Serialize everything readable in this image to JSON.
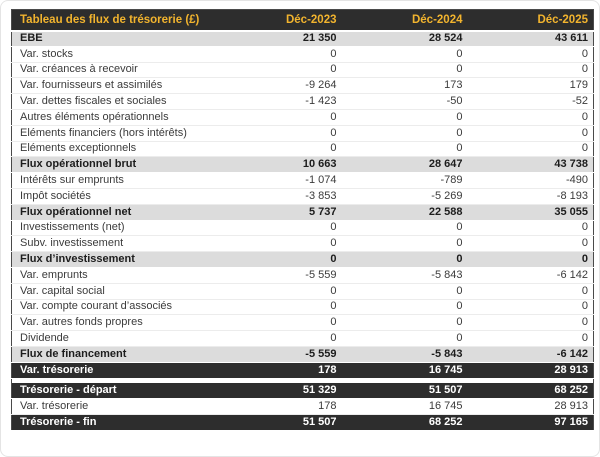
{
  "table": {
    "title": "Tableau des flux de trésorerie (£)",
    "columns": [
      "Déc-2023",
      "Déc-2024",
      "Déc-2025"
    ],
    "rows": [
      {
        "label": "EBE",
        "values": [
          "21 350",
          "28 524",
          "43 611"
        ],
        "style": "subtotal"
      },
      {
        "label": "Var. stocks",
        "values": [
          "0",
          "0",
          "0"
        ],
        "style": "normal"
      },
      {
        "label": "Var. créances à recevoir",
        "values": [
          "0",
          "0",
          "0"
        ],
        "style": "normal"
      },
      {
        "label": "Var. fournisseurs et assimilés",
        "values": [
          "-9 264",
          "173",
          "179"
        ],
        "style": "normal"
      },
      {
        "label": "Var. dettes fiscales et sociales",
        "values": [
          "-1 423",
          "-50",
          "-52"
        ],
        "style": "normal"
      },
      {
        "label": "Autres éléments opérationnels",
        "values": [
          "0",
          "0",
          "0"
        ],
        "style": "normal"
      },
      {
        "label": "Eléments financiers (hors intérêts)",
        "values": [
          "0",
          "0",
          "0"
        ],
        "style": "normal"
      },
      {
        "label": "Eléments exceptionnels",
        "values": [
          "0",
          "0",
          "0"
        ],
        "style": "normal"
      },
      {
        "label": "Flux opérationnel brut",
        "values": [
          "10 663",
          "28 647",
          "43 738"
        ],
        "style": "subtotal"
      },
      {
        "label": "Intérêts sur emprunts",
        "values": [
          "-1 074",
          "-789",
          "-490"
        ],
        "style": "normal"
      },
      {
        "label": "Impôt sociétés",
        "values": [
          "-3 853",
          "-5 269",
          "-8 193"
        ],
        "style": "normal"
      },
      {
        "label": "Flux opérationnel net",
        "values": [
          "5 737",
          "22 588",
          "35 055"
        ],
        "style": "subtotal"
      },
      {
        "label": "Investissements (net)",
        "values": [
          "0",
          "0",
          "0"
        ],
        "style": "normal"
      },
      {
        "label": "Subv. investissement",
        "values": [
          "0",
          "0",
          "0"
        ],
        "style": "normal"
      },
      {
        "label": "Flux d’investissement",
        "values": [
          "0",
          "0",
          "0"
        ],
        "style": "subtotal"
      },
      {
        "label": "Var. emprunts",
        "values": [
          "-5 559",
          "-5 843",
          "-6 142"
        ],
        "style": "normal"
      },
      {
        "label": "Var. capital social",
        "values": [
          "0",
          "0",
          "0"
        ],
        "style": "normal"
      },
      {
        "label": "Var. compte courant d’associés",
        "values": [
          "0",
          "0",
          "0"
        ],
        "style": "normal"
      },
      {
        "label": "Var. autres fonds propres",
        "values": [
          "0",
          "0",
          "0"
        ],
        "style": "normal"
      },
      {
        "label": "Dividende",
        "values": [
          "0",
          "0",
          "0"
        ],
        "style": "normal"
      },
      {
        "label": "Flux de financement",
        "values": [
          "-5 559",
          "-5 843",
          "-6 142"
        ],
        "style": "subtotal"
      },
      {
        "label": "Var. trésorerie",
        "values": [
          "178",
          "16 745",
          "28 913"
        ],
        "style": "total"
      },
      {
        "style": "spacer"
      },
      {
        "label": "Trésorerie - départ",
        "values": [
          "51 329",
          "51 507",
          "68 252"
        ],
        "style": "total"
      },
      {
        "label": "Var. trésorerie",
        "values": [
          "178",
          "16 745",
          "28 913"
        ],
        "style": "normal"
      },
      {
        "label": "Trésorerie - fin",
        "values": [
          "51 507",
          "68 252",
          "97 165"
        ],
        "style": "total"
      }
    ],
    "colors": {
      "header_bg": "#2d2d2d",
      "header_text": "#f2b42e",
      "subtotal_bg": "#dcdcdc",
      "total_bg": "#2d2d2d",
      "total_text": "#ffffff"
    }
  },
  "chart_data": {
    "type": "table",
    "title": "Tableau des flux de trésorerie (£)",
    "columns": [
      "Déc-2023",
      "Déc-2024",
      "Déc-2025"
    ],
    "rows": [
      {
        "label": "EBE",
        "values": [
          21350,
          28524,
          43611
        ]
      },
      {
        "label": "Var. stocks",
        "values": [
          0,
          0,
          0
        ]
      },
      {
        "label": "Var. créances à recevoir",
        "values": [
          0,
          0,
          0
        ]
      },
      {
        "label": "Var. fournisseurs et assimilés",
        "values": [
          -9264,
          173,
          179
        ]
      },
      {
        "label": "Var. dettes fiscales et sociales",
        "values": [
          -1423,
          -50,
          -52
        ]
      },
      {
        "label": "Autres éléments opérationnels",
        "values": [
          0,
          0,
          0
        ]
      },
      {
        "label": "Eléments financiers (hors intérêts)",
        "values": [
          0,
          0,
          0
        ]
      },
      {
        "label": "Eléments exceptionnels",
        "values": [
          0,
          0,
          0
        ]
      },
      {
        "label": "Flux opérationnel brut",
        "values": [
          10663,
          28647,
          43738
        ]
      },
      {
        "label": "Intérêts sur emprunts",
        "values": [
          -1074,
          -789,
          -490
        ]
      },
      {
        "label": "Impôt sociétés",
        "values": [
          -3853,
          -5269,
          -8193
        ]
      },
      {
        "label": "Flux opérationnel net",
        "values": [
          5737,
          22588,
          35055
        ]
      },
      {
        "label": "Investissements (net)",
        "values": [
          0,
          0,
          0
        ]
      },
      {
        "label": "Subv. investissement",
        "values": [
          0,
          0,
          0
        ]
      },
      {
        "label": "Flux d’investissement",
        "values": [
          0,
          0,
          0
        ]
      },
      {
        "label": "Var. emprunts",
        "values": [
          -5559,
          -5843,
          -6142
        ]
      },
      {
        "label": "Var. capital social",
        "values": [
          0,
          0,
          0
        ]
      },
      {
        "label": "Var. compte courant d’associés",
        "values": [
          0,
          0,
          0
        ]
      },
      {
        "label": "Var. autres fonds propres",
        "values": [
          0,
          0,
          0
        ]
      },
      {
        "label": "Dividende",
        "values": [
          0,
          0,
          0
        ]
      },
      {
        "label": "Flux de financement",
        "values": [
          -5559,
          -5843,
          -6142
        ]
      },
      {
        "label": "Var. trésorerie",
        "values": [
          178,
          16745,
          28913
        ]
      },
      {
        "label": "Trésorerie - départ",
        "values": [
          51329,
          51507,
          68252
        ]
      },
      {
        "label": "Var. trésorerie",
        "values": [
          178,
          16745,
          28913
        ]
      },
      {
        "label": "Trésorerie - fin",
        "values": [
          51507,
          68252,
          97165
        ]
      }
    ]
  }
}
